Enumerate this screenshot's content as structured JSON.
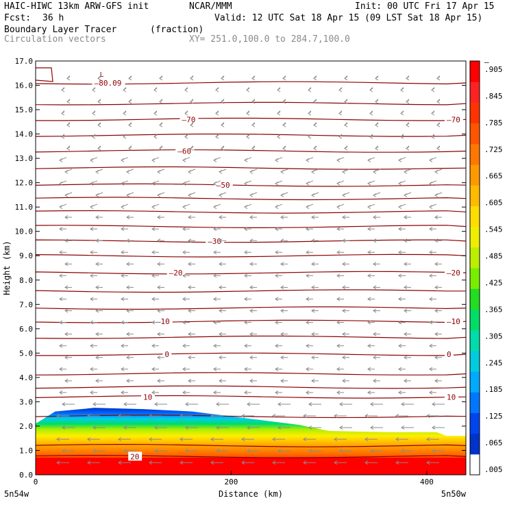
{
  "header": {
    "model": "HAIC-HIWC 13km ARW-GFS init",
    "org": "NCAR/MMM",
    "init": "Init: 00 UTC Fri 17 Apr 15",
    "fcst_label": "Fcst:",
    "fcst_value": "36 h",
    "valid": "Valid: 12 UTC Sat 18 Apr 15 (09 LST Sat 18 Apr 15)",
    "field": "Boundary Layer Tracer",
    "field_units": "(fraction)",
    "vectors": "Circulation vectors",
    "xy": "XY= 251.0,100.0 to 284.7,100.0"
  },
  "chart_data": {
    "type": "cross-section",
    "xlabel": "Distance (km)",
    "ylabel": "Height (km)",
    "xlim": [
      0,
      440
    ],
    "ylim": [
      0,
      17
    ],
    "x_ticks": [
      0,
      200,
      400
    ],
    "y_ticks": [
      "0.0",
      "1.0",
      "2.0",
      "3.0",
      "4.0",
      "5.0",
      "6.0",
      "7.0",
      "8.0",
      "9.0",
      "10.0",
      "11.0",
      "12.0",
      "13.0",
      "14.0",
      "15.0",
      "16.0",
      "17.0"
    ],
    "x_end_labels": {
      "left": "5n54w",
      "right": "5n50w"
    },
    "colorbar": {
      "labels": [
        ".005",
        ".065",
        ".125",
        ".185",
        ".245",
        ".305",
        ".365",
        ".425",
        ".485",
        ".545",
        ".605",
        ".665",
        ".725",
        ".785",
        ".845",
        ".905"
      ],
      "top_label": "–",
      "colors": [
        "#ffffff",
        "#0033cc",
        "#0044ee",
        "#0077ff",
        "#00aaff",
        "#00ccdd",
        "#00ddaa",
        "#00dd66",
        "#22dd22",
        "#77ee00",
        "#bbee00",
        "#eeee00",
        "#ffdd00",
        "#ffbb00",
        "#ff9900",
        "#ff7700",
        "#ff5500",
        "#ff3300",
        "#ff2222",
        "#ff0000"
      ]
    },
    "tracer_top_km": [
      [
        0,
        2.1
      ],
      [
        20,
        2.6
      ],
      [
        60,
        2.75
      ],
      [
        110,
        2.7
      ],
      [
        160,
        2.6
      ],
      [
        220,
        2.3
      ],
      [
        270,
        2.05
      ],
      [
        300,
        1.8
      ],
      [
        360,
        1.75
      ],
      [
        410,
        1.75
      ],
      [
        420,
        1.6
      ],
      [
        440,
        1.6
      ]
    ],
    "temperature_contours": [
      {
        "label": "–80.09",
        "height_km": 16.1,
        "x_km": 60
      },
      {
        "label": "–70",
        "height_km": 14.6
      },
      {
        "label": "–60",
        "height_km": 13.3
      },
      {
        "label": "–50",
        "height_km": 11.9
      },
      {
        "label": "–30",
        "height_km": 9.6
      },
      {
        "label": "–20",
        "height_km": 8.3
      },
      {
        "label": "–10",
        "height_km": 6.3
      },
      {
        "label": "0",
        "height_km": 4.95
      },
      {
        "label": "10",
        "height_km": 3.2
      },
      {
        "label": "20",
        "height_km": 0.75
      }
    ],
    "contour_levels_km": [
      16.1,
      15.25,
      14.6,
      13.95,
      13.3,
      12.6,
      11.9,
      11.35,
      10.8,
      10.2,
      9.6,
      9.0,
      8.3,
      7.55,
      6.85,
      6.3,
      5.65,
      4.95,
      4.15,
      3.6,
      3.2,
      2.4,
      1.2,
      0.75
    ],
    "low_marker": "L"
  }
}
